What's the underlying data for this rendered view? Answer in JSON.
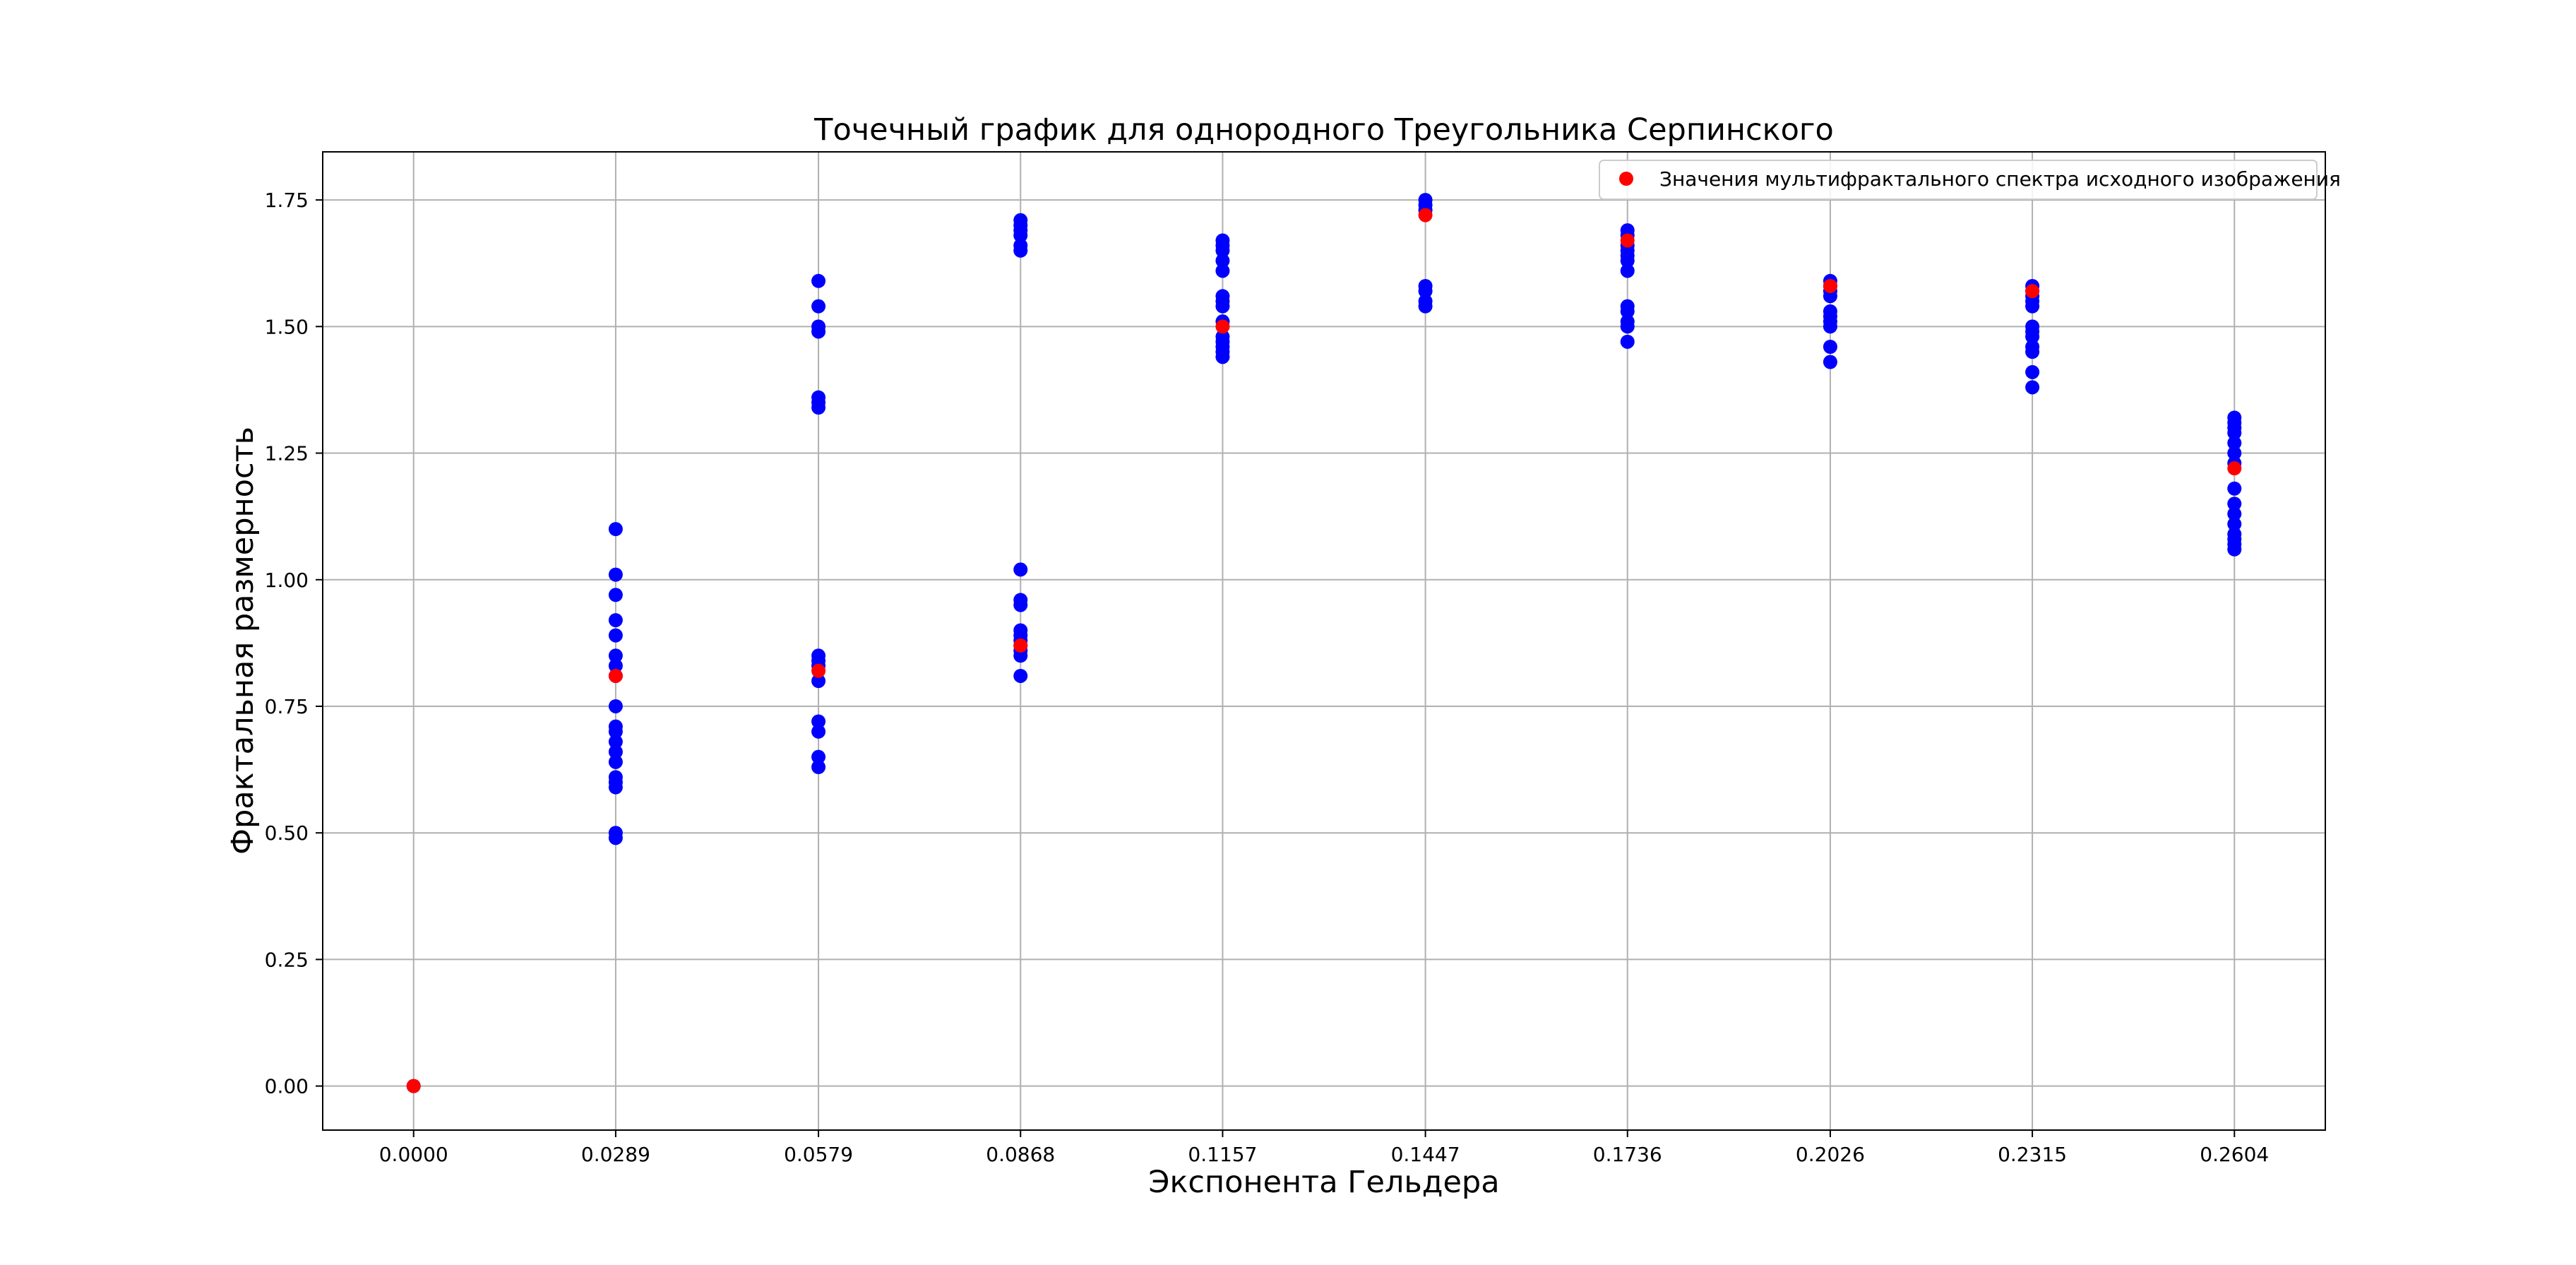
{
  "chart_data": {
    "type": "scatter",
    "title": "Точечный график для однородного Треугольника Серпинского",
    "xlabel": "Экспонента Гельдера",
    "ylabel": "Фрактальная размерность",
    "xlim": [
      -0.013,
      0.2734
    ],
    "ylim": [
      -0.087,
      1.845
    ],
    "xticks": [
      "0.0000",
      "0.0289",
      "0.0579",
      "0.0868",
      "0.1157",
      "0.1447",
      "0.1736",
      "0.2026",
      "0.2315",
      "0.2604"
    ],
    "yticks": [
      "0.00",
      "0.25",
      "0.50",
      "0.75",
      "1.00",
      "1.25",
      "1.50",
      "1.75"
    ],
    "grid": true,
    "legend_position": "top-right",
    "colors": {
      "samples": "#0000ff",
      "spectrum": "#ff0000",
      "grid": "#b0b0b0",
      "axes": "#000000"
    },
    "series": [
      {
        "role": "samples",
        "color": "#0000ff",
        "groups": [
          {
            "x": 0.0,
            "y": [
              0.0
            ]
          },
          {
            "x": 0.0289,
            "y": [
              1.1,
              1.01,
              0.97,
              0.92,
              0.89,
              0.85,
              0.83,
              0.81,
              0.75,
              0.71,
              0.7,
              0.68,
              0.66,
              0.64,
              0.61,
              0.6,
              0.59,
              0.5,
              0.49
            ]
          },
          {
            "x": 0.0579,
            "y": [
              1.59,
              1.54,
              1.5,
              1.49,
              1.36,
              1.35,
              1.34,
              0.85,
              0.84,
              0.83,
              0.8,
              0.72,
              0.7,
              0.65,
              0.63
            ]
          },
          {
            "x": 0.0868,
            "y": [
              1.71,
              1.7,
              1.69,
              1.68,
              1.66,
              1.65,
              1.02,
              0.96,
              0.95,
              0.9,
              0.89,
              0.88,
              0.87,
              0.86,
              0.85,
              0.81
            ]
          },
          {
            "x": 0.1157,
            "y": [
              1.67,
              1.66,
              1.65,
              1.63,
              1.61,
              1.56,
              1.55,
              1.54,
              1.51,
              1.48,
              1.47,
              1.46,
              1.45,
              1.44
            ]
          },
          {
            "x": 0.1447,
            "y": [
              1.75,
              1.74,
              1.73,
              1.58,
              1.57,
              1.55,
              1.54
            ]
          },
          {
            "x": 0.1736,
            "y": [
              1.69,
              1.68,
              1.66,
              1.65,
              1.64,
              1.63,
              1.61,
              1.54,
              1.53,
              1.51,
              1.5,
              1.47
            ]
          },
          {
            "x": 0.2026,
            "y": [
              1.59,
              1.58,
              1.57,
              1.56,
              1.53,
              1.52,
              1.51,
              1.5,
              1.46,
              1.43
            ]
          },
          {
            "x": 0.2315,
            "y": [
              1.58,
              1.57,
              1.56,
              1.55,
              1.54,
              1.5,
              1.49,
              1.48,
              1.46,
              1.45,
              1.41,
              1.38
            ]
          },
          {
            "x": 0.2604,
            "y": [
              1.32,
              1.31,
              1.3,
              1.29,
              1.27,
              1.25,
              1.23,
              1.18,
              1.15,
              1.13,
              1.11,
              1.09,
              1.08,
              1.07,
              1.06
            ]
          }
        ]
      },
      {
        "role": "spectrum",
        "name": "Значения мультифрактального спектра исходного изображения",
        "color": "#ff0000",
        "x": [
          0.0,
          0.0289,
          0.0579,
          0.0868,
          0.1157,
          0.1447,
          0.1736,
          0.2026,
          0.2315,
          0.2604
        ],
        "y": [
          0.0,
          0.81,
          0.82,
          0.87,
          1.5,
          1.72,
          1.67,
          1.58,
          1.57,
          1.22
        ]
      }
    ]
  }
}
